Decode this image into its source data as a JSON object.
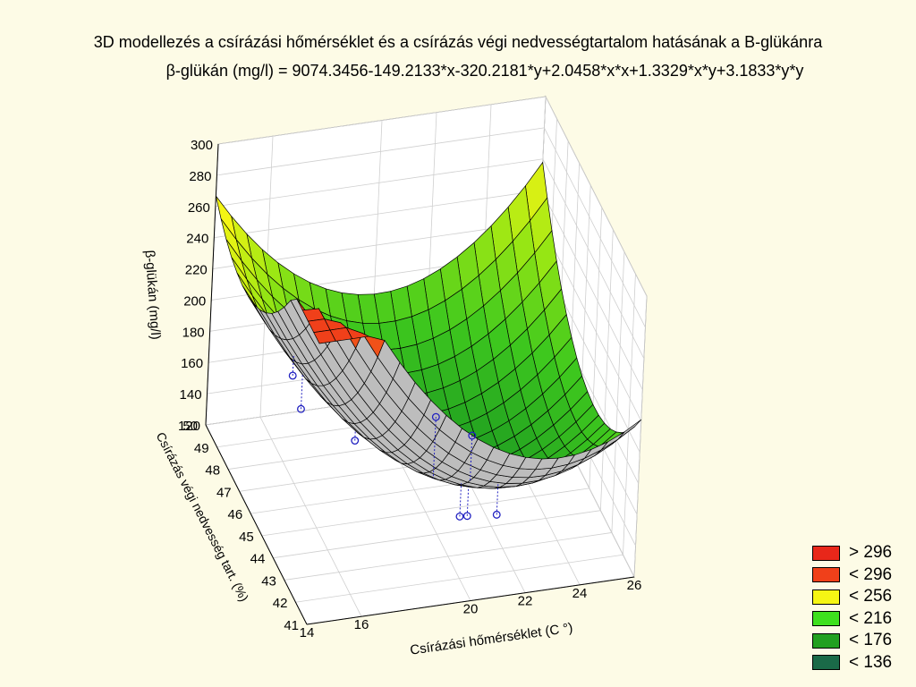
{
  "chart_data": {
    "type": "surface3d",
    "title": "3D modellezés a  csírázási hőmérséklet és a csírázás végi nedvességtartalom hatásának a B-glükánra",
    "subtitle": "β-glükán (mg/l) = 9074.3456-149.2133*x-320.2181*y+2.0458*x*x+1.3329*x*y+3.1833*y*y",
    "equation": {
      "c0": 9074.3456,
      "cx": -149.2133,
      "cy": -320.2181,
      "cxx": 2.0458,
      "cxy": 1.3329,
      "cyy": 3.1833
    },
    "xlabel": "Csírázási hőmérséklet (C   °)",
    "ylabel": "Csírázás végi nedvesség tart. (%)",
    "zlabel": "β-glükán (mg/l)",
    "xlim": [
      14,
      26
    ],
    "ylim": [
      41,
      50
    ],
    "zlim": [
      120,
      300
    ],
    "x_ticks": [
      "14",
      "16",
      "20",
      "22",
      "24",
      "26"
    ],
    "y_ticks": [
      "41",
      "42",
      "43",
      "44",
      "45",
      "46",
      "47",
      "48",
      "49",
      "50"
    ],
    "z_ticks": [
      "120",
      "140",
      "160",
      "180",
      "200",
      "220",
      "240",
      "260",
      "280",
      "300"
    ],
    "observed_points": [
      {
        "x": 16,
        "y": 47.5,
        "z": 182
      },
      {
        "x": 16,
        "y": 46.7,
        "z": 172
      },
      {
        "x": 17.5,
        "y": 45.5,
        "z": 165
      },
      {
        "x": 20,
        "y": 44.5,
        "z": 188
      },
      {
        "x": 21.5,
        "y": 44.8,
        "z": 168
      },
      {
        "x": 20.5,
        "y": 43.3,
        "z": 140
      },
      {
        "x": 21,
        "y": 43.8,
        "z": 132
      },
      {
        "x": 21.5,
        "y": 42.5,
        "z": 150
      }
    ],
    "legend": [
      {
        "label": "> 296",
        "color": "#e8271a"
      },
      {
        "label": "< 296",
        "color": "#f0401a"
      },
      {
        "label": "< 256",
        "color": "#f5f514"
      },
      {
        "label": "< 216",
        "color": "#3ee01e"
      },
      {
        "label": "< 176",
        "color": "#21a021"
      },
      {
        "label": "< 136",
        "color": "#1a6a48"
      }
    ],
    "grid": true,
    "legend_position": "bottom-right"
  }
}
